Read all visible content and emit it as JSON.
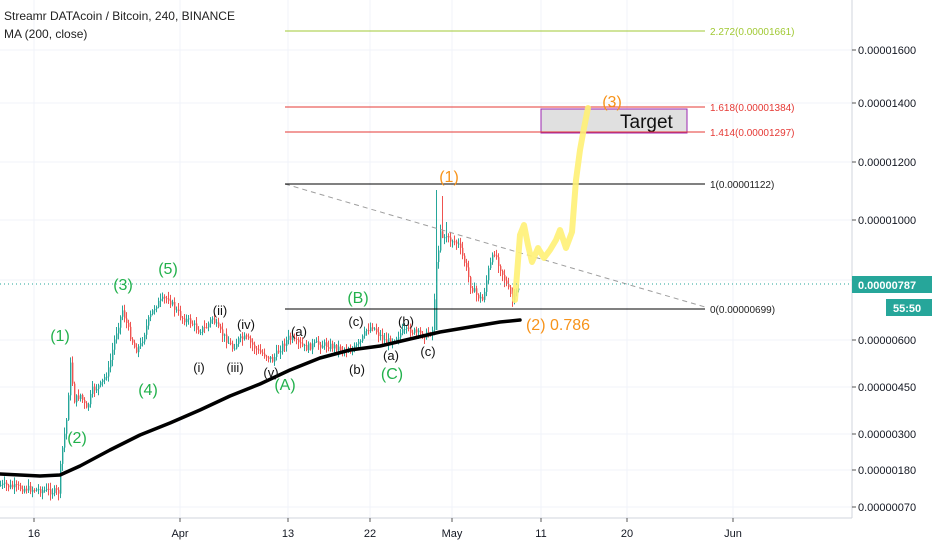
{
  "header": {
    "title": "Streamr DATAcoin / Bitcoin, 240, BINANCE",
    "indicator": "MA (200, close)"
  },
  "colors": {
    "background": "#ffffff",
    "grid": "#f0f3fa",
    "candle_up": "#26a69a",
    "candle_down": "#ef5350",
    "ma_line": "#000000",
    "wave_green": "#22b14c",
    "wave_orange": "#f7931a",
    "fib_green": "#a1c934",
    "fib_red": "#e53935",
    "projection": "#fff176",
    "last_price_bg": "#26a69a",
    "trendline": "#9e9e9e"
  },
  "chart_data": {
    "type": "candlestick",
    "title": "Streamr DATAcoin / Bitcoin, 240, BINANCE",
    "y_axis": {
      "ticks": [
        "0.00001600",
        "0.00001400",
        "0.00001200",
        "0.00001000",
        "0.00000800",
        "0.00000600",
        "0.00000450",
        "0.00000300",
        "0.00000180",
        "0.00000070"
      ],
      "position": "right"
    },
    "x_axis": {
      "ticks": [
        "16",
        "Apr",
        "13",
        "22",
        "May",
        "11",
        "20",
        "Jun"
      ]
    },
    "grid": true,
    "last_price": "0.00000787",
    "countdown": "55:50",
    "fib_levels": [
      {
        "label": "2.272(0.00001661)",
        "value": 1.661e-05,
        "color": "green"
      },
      {
        "label": "1.618(0.00001384)",
        "value": 1.384e-05,
        "color": "red"
      },
      {
        "label": "1.414(0.00001297)",
        "value": 1.297e-05,
        "color": "red"
      },
      {
        "label": "1(0.00001122)",
        "value": 1.122e-05,
        "color": "black"
      },
      {
        "label": "0(0.00000699)",
        "value": 6.99e-06,
        "color": "black"
      }
    ],
    "target_label": "Target",
    "wave_labels": [
      {
        "text": "(1)",
        "color": "green"
      },
      {
        "text": "(2)",
        "color": "green"
      },
      {
        "text": "(3)",
        "color": "green"
      },
      {
        "text": "(4)",
        "color": "green"
      },
      {
        "text": "(5)",
        "color": "green"
      },
      {
        "text": "(i)",
        "color": "black"
      },
      {
        "text": "(ii)",
        "color": "black"
      },
      {
        "text": "(iii)",
        "color": "black"
      },
      {
        "text": "(iv)",
        "color": "black"
      },
      {
        "text": "(v)",
        "color": "black"
      },
      {
        "text": "(A)",
        "color": "green"
      },
      {
        "text": "(a)",
        "color": "black"
      },
      {
        "text": "(b)",
        "color": "black"
      },
      {
        "text": "(c)",
        "color": "black"
      },
      {
        "text": "(B)",
        "color": "green"
      },
      {
        "text": "(a)",
        "color": "black"
      },
      {
        "text": "(b)",
        "color": "black"
      },
      {
        "text": "(c)",
        "color": "black"
      },
      {
        "text": "(C)",
        "color": "green"
      },
      {
        "text": "(1)",
        "color": "orange"
      },
      {
        "text": "(2) 0.786",
        "color": "orange"
      },
      {
        "text": "(3)",
        "color": "orange"
      }
    ]
  }
}
